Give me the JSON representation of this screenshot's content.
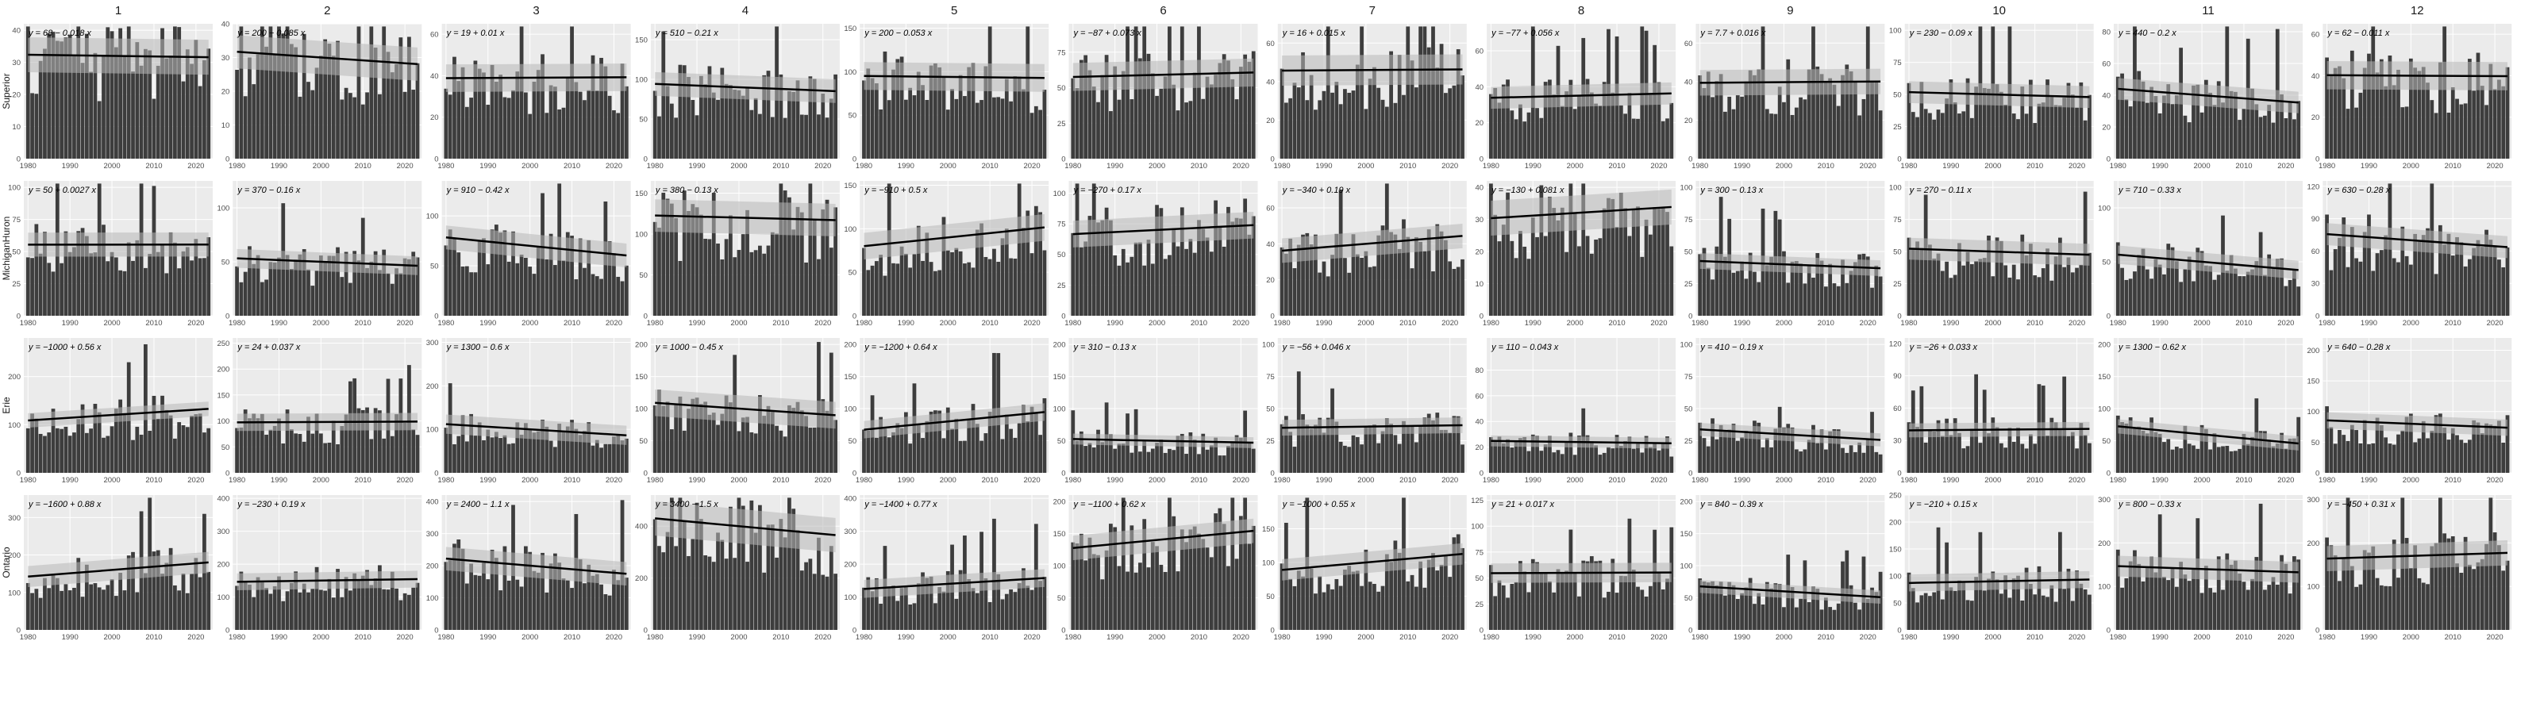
{
  "chart_data": {
    "type": "bar",
    "title": "",
    "xlabel": "",
    "ylabel": "",
    "years": [
      1980,
      2023
    ],
    "xticks": [
      1980,
      1990,
      2000,
      2010,
      2020
    ],
    "columns": [
      "1",
      "2",
      "3",
      "4",
      "5",
      "6",
      "7",
      "8",
      "9",
      "10",
      "11",
      "12"
    ],
    "rows": [
      "Superior",
      "MichiganHuron",
      "Erie",
      "Ontario"
    ],
    "panels": [
      [
        {
          "eq": "y = 68 − 0.018 x",
          "intercept": 68,
          "slope": -0.018,
          "ylim": [
            0,
            42
          ],
          "yticks": [
            0,
            10,
            20,
            30,
            40
          ],
          "mean": 32
        },
        {
          "eq": "y = 200 − 0.085 x",
          "intercept": 200,
          "slope": -0.085,
          "ylim": [
            0,
            40
          ],
          "yticks": [
            0,
            10,
            20,
            30,
            40
          ],
          "mean": 29
        },
        {
          "eq": "y = 19 + 0.01 x",
          "intercept": 19,
          "slope": 0.01,
          "ylim": [
            0,
            65
          ],
          "yticks": [
            0,
            20,
            40,
            60
          ],
          "mean": 39
        },
        {
          "eq": "y = 510 − 0.21 x",
          "intercept": 510,
          "slope": -0.21,
          "ylim": [
            0,
            170
          ],
          "yticks": [
            0,
            50,
            100,
            150
          ],
          "mean": 88
        },
        {
          "eq": "y = 200 − 0.053 x",
          "intercept": 200,
          "slope": -0.053,
          "ylim": [
            0,
            155
          ],
          "yticks": [
            0,
            50,
            100,
            150
          ],
          "mean": 94
        },
        {
          "eq": "y = −87 + 0.073 x",
          "intercept": -87,
          "slope": 0.073,
          "ylim": [
            0,
            95
          ],
          "yticks": [
            0,
            25,
            50,
            75
          ],
          "mean": 58
        },
        {
          "eq": "y = 16 + 0.015 x",
          "intercept": 16,
          "slope": 0.015,
          "ylim": [
            0,
            70
          ],
          "yticks": [
            0,
            20,
            40,
            60
          ],
          "mean": 46
        },
        {
          "eq": "y = −77 + 0.056 x",
          "intercept": -77,
          "slope": 0.056,
          "ylim": [
            0,
            75
          ],
          "yticks": [
            0,
            20,
            40,
            60
          ],
          "mean": 36
        },
        {
          "eq": "y = 7.7 + 0.016 x",
          "intercept": 7.7,
          "slope": 0.016,
          "ylim": [
            0,
            70
          ],
          "yticks": [
            0,
            20,
            40,
            60
          ],
          "mean": 39
        },
        {
          "eq": "y = 230 − 0.09 x",
          "intercept": 230,
          "slope": -0.09,
          "ylim": [
            0,
            105
          ],
          "yticks": [
            0,
            25,
            50,
            75,
            100
          ],
          "mean": 50
        },
        {
          "eq": "y = 440 − 0.2 x",
          "intercept": 440,
          "slope": -0.2,
          "ylim": [
            0,
            85
          ],
          "yticks": [
            0,
            20,
            40,
            60,
            80
          ],
          "mean": 40
        },
        {
          "eq": "y = 62 − 0.011 x",
          "intercept": 62,
          "slope": -0.011,
          "ylim": [
            0,
            65
          ],
          "yticks": [
            0,
            20,
            40,
            60
          ],
          "mean": 40
        }
      ],
      [
        {
          "eq": "y = 50 + 0.0027 x",
          "intercept": 50,
          "slope": 0.0027,
          "ylim": [
            0,
            105
          ],
          "yticks": [
            0,
            25,
            50,
            75,
            100
          ],
          "mean": 55
        },
        {
          "eq": "y = 370 − 0.16 x",
          "intercept": 370,
          "slope": -0.16,
          "ylim": [
            0,
            125
          ],
          "yticks": [
            0,
            50,
            100
          ],
          "mean": 51
        },
        {
          "eq": "y = 910 − 0.42 x",
          "intercept": 910,
          "slope": -0.42,
          "ylim": [
            0,
            135
          ],
          "yticks": [
            0,
            50,
            100
          ],
          "mean": 70
        },
        {
          "eq": "y = 380 − 0.13 x",
          "intercept": 380,
          "slope": -0.13,
          "ylim": [
            0,
            165
          ],
          "yticks": [
            0,
            50,
            100,
            150
          ],
          "mean": 117
        },
        {
          "eq": "y = −910 + 0.5 x",
          "intercept": -910,
          "slope": 0.5,
          "ylim": [
            0,
            155
          ],
          "yticks": [
            0,
            50,
            100,
            150
          ],
          "mean": 90
        },
        {
          "eq": "y = −270 + 0.17 x",
          "intercept": -270,
          "slope": 0.17,
          "ylim": [
            0,
            110
          ],
          "yticks": [
            0,
            25,
            50,
            75,
            100
          ],
          "mean": 64
        },
        {
          "eq": "y = −340 + 0.19 x",
          "intercept": -340,
          "slope": 0.19,
          "ylim": [
            0,
            75
          ],
          "yticks": [
            0,
            20,
            40,
            60
          ],
          "mean": 40
        },
        {
          "eq": "y = −130 + 0.081 x",
          "intercept": -130,
          "slope": 0.081,
          "ylim": [
            0,
            42
          ],
          "yticks": [
            0,
            10,
            20,
            30,
            40
          ],
          "mean": 32
        },
        {
          "eq": "y = 300 − 0.13 x",
          "intercept": 300,
          "slope": -0.13,
          "ylim": [
            0,
            105
          ],
          "yticks": [
            0,
            25,
            50,
            75,
            100
          ],
          "mean": 36
        },
        {
          "eq": "y = 270 − 0.11 x",
          "intercept": 270,
          "slope": -0.11,
          "ylim": [
            0,
            105
          ],
          "yticks": [
            0,
            25,
            50,
            75,
            100
          ],
          "mean": 50
        },
        {
          "eq": "y = 710 − 0.33 x",
          "intercept": 710,
          "slope": -0.33,
          "ylim": [
            0,
            125
          ],
          "yticks": [
            0,
            50,
            100
          ],
          "mean": 50
        },
        {
          "eq": "y = 630 − 0.28 x",
          "intercept": 630,
          "slope": -0.28,
          "ylim": [
            0,
            125
          ],
          "yticks": [
            0,
            30,
            60,
            90,
            120
          ],
          "mean": 60
        }
      ],
      [
        {
          "eq": "y = −1000 + 0.56 x",
          "intercept": -1000,
          "slope": 0.56,
          "ylim": [
            0,
            280
          ],
          "yticks": [
            0,
            100,
            200
          ],
          "mean": 88
        },
        {
          "eq": "y = 24 + 0.037 x",
          "intercept": 24,
          "slope": 0.037,
          "ylim": [
            0,
            260
          ],
          "yticks": [
            0,
            50,
            100,
            150,
            200,
            250
          ],
          "mean": 98
        },
        {
          "eq": "y = 1300 − 0.6 x",
          "intercept": 1300,
          "slope": -0.6,
          "ylim": [
            0,
            310
          ],
          "yticks": [
            0,
            100,
            200,
            300
          ],
          "mean": 130
        },
        {
          "eq": "y = 1000 − 0.45 x",
          "intercept": 1000,
          "slope": -0.45,
          "ylim": [
            0,
            210
          ],
          "yticks": [
            0,
            50,
            100,
            150,
            200
          ],
          "mean": 122
        },
        {
          "eq": "y = −1200 + 0.64 x",
          "intercept": -1200,
          "slope": 0.64,
          "ylim": [
            0,
            210
          ],
          "yticks": [
            0,
            50,
            100,
            150,
            200
          ],
          "mean": 80
        },
        {
          "eq": "y = 310 − 0.13 x",
          "intercept": 310,
          "slope": -0.13,
          "ylim": [
            0,
            210
          ],
          "yticks": [
            0,
            50,
            100,
            150,
            200
          ],
          "mean": 50
        },
        {
          "eq": "y = −56 + 0.046 x",
          "intercept": -56,
          "slope": 0.046,
          "ylim": [
            0,
            105
          ],
          "yticks": [
            0,
            25,
            50,
            75,
            100
          ],
          "mean": 36
        },
        {
          "eq": "y = 110 − 0.043 x",
          "intercept": 110,
          "slope": -0.043,
          "ylim": [
            0,
            105
          ],
          "yticks": [
            0,
            20,
            40,
            60,
            80
          ],
          "mean": 25
        },
        {
          "eq": "y = 410 − 0.19 x",
          "intercept": 410,
          "slope": -0.19,
          "ylim": [
            0,
            105
          ],
          "yticks": [
            0,
            25,
            50,
            75,
            100
          ],
          "mean": 30
        },
        {
          "eq": "y = −26 + 0.033 x",
          "intercept": -26,
          "slope": 0.033,
          "ylim": [
            0,
            125
          ],
          "yticks": [
            0,
            30,
            60,
            90,
            120
          ],
          "mean": 38
        },
        {
          "eq": "y = 1300 − 0.62 x",
          "intercept": 1300,
          "slope": -0.62,
          "ylim": [
            0,
            210
          ],
          "yticks": [
            0,
            50,
            100,
            150,
            200
          ],
          "mean": 65
        },
        {
          "eq": "y = 640 − 0.28 x",
          "intercept": 640,
          "slope": -0.28,
          "ylim": [
            0,
            220
          ],
          "yticks": [
            0,
            50,
            100,
            150,
            200
          ],
          "mean": 78
        }
      ],
      [
        {
          "eq": "y = −1600 + 0.88 x",
          "intercept": -1600,
          "slope": 0.88,
          "ylim": [
            0,
            360
          ],
          "yticks": [
            0,
            100,
            200,
            300
          ],
          "mean": 165
        },
        {
          "eq": "y = −230 + 0.19 x",
          "intercept": -230,
          "slope": 0.19,
          "ylim": [
            0,
            410
          ],
          "yticks": [
            0,
            100,
            200,
            300,
            400
          ],
          "mean": 150
        },
        {
          "eq": "y = 2400 − 1.1 x",
          "intercept": 2400,
          "slope": -1.1,
          "ylim": [
            0,
            420
          ],
          "yticks": [
            0,
            100,
            200,
            300,
            400
          ],
          "mean": 215
        },
        {
          "eq": "y = 3400 − 1.5 x",
          "intercept": 3400,
          "slope": -1.5,
          "ylim": [
            0,
            520
          ],
          "yticks": [
            0,
            200,
            400
          ],
          "mean": 390
        },
        {
          "eq": "y = −1400 + 0.77 x",
          "intercept": -1400,
          "slope": 0.77,
          "ylim": [
            0,
            410
          ],
          "yticks": [
            0,
            100,
            200,
            300,
            400
          ],
          "mean": 160
        },
        {
          "eq": "y = −1100 + 0.62 x",
          "intercept": -1100,
          "slope": 0.62,
          "ylim": [
            0,
            210
          ],
          "yticks": [
            0,
            50,
            100,
            150,
            200
          ],
          "mean": 112
        },
        {
          "eq": "y = −1000 + 0.55 x",
          "intercept": -1000,
          "slope": 0.55,
          "ylim": [
            0,
            200
          ],
          "yticks": [
            0,
            50,
            100,
            150
          ],
          "mean": 93
        },
        {
          "eq": "y = 21 + 0.017 x",
          "intercept": 21,
          "slope": 0.017,
          "ylim": [
            0,
            130
          ],
          "yticks": [
            0,
            25,
            50,
            75,
            100,
            125
          ],
          "mean": 55
        },
        {
          "eq": "y = 840 − 0.39 x",
          "intercept": 840,
          "slope": -0.39,
          "ylim": [
            0,
            210
          ],
          "yticks": [
            0,
            50,
            100,
            150,
            200
          ],
          "mean": 60
        },
        {
          "eq": "y = −210 + 0.15 x",
          "intercept": -210,
          "slope": 0.15,
          "ylim": [
            0,
            250
          ],
          "yticks": [
            0,
            50,
            100,
            150,
            200,
            250
          ],
          "mean": 92
        },
        {
          "eq": "y = 800 − 0.33 x",
          "intercept": 800,
          "slope": -0.33,
          "ylim": [
            0,
            310
          ],
          "yticks": [
            0,
            100,
            200,
            300
          ],
          "mean": 140
        },
        {
          "eq": "y = −450 + 0.31 x",
          "intercept": -450,
          "slope": 0.31,
          "ylim": [
            0,
            310
          ],
          "yticks": [
            0,
            100,
            200,
            300
          ],
          "mean": 170
        }
      ]
    ],
    "grid": true,
    "legend": "none",
    "colors": {
      "bar": "#3d3d3d",
      "panel_bg": "#ebebeb",
      "grid": "#ffffff",
      "band": "#b8b8b8",
      "fit_line": "#000000",
      "axis_text": "#4d4d4d"
    }
  }
}
